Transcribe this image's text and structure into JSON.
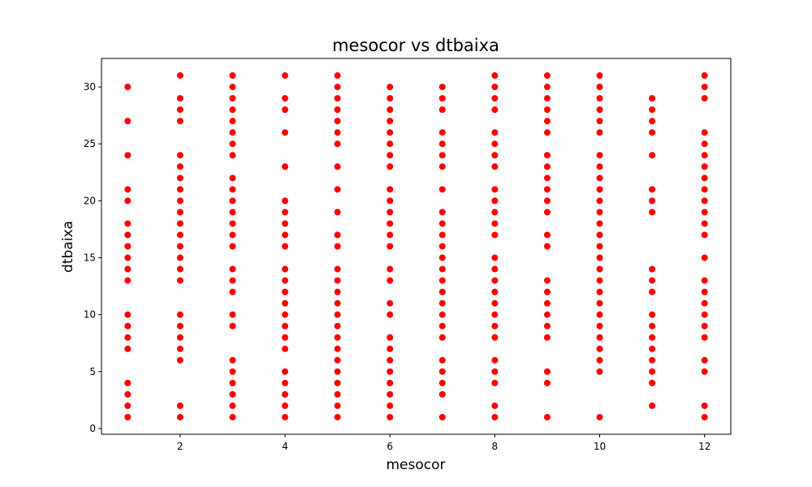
{
  "chart_data": {
    "type": "scatter",
    "title": "mesocor vs dtbaixa",
    "xlabel": "mesocor",
    "ylabel": "dtbaixa",
    "xlim": [
      0.5,
      12.5
    ],
    "ylim": [
      -0.5,
      32.5
    ],
    "xticks": [
      2,
      4,
      6,
      8,
      10,
      12
    ],
    "yticks": [
      0,
      5,
      10,
      15,
      20,
      25,
      30
    ],
    "grid": false,
    "marker_color": "#ff0000",
    "series": [
      {
        "points_by_x": [
          {
            "x": 1,
            "y": [
              1,
              2,
              3,
              4,
              7,
              8,
              9,
              10,
              13,
              14,
              15,
              16,
              17,
              18,
              20,
              21,
              24,
              27,
              30
            ]
          },
          {
            "x": 2,
            "y": [
              1,
              2,
              6,
              7,
              8,
              9,
              10,
              13,
              14,
              15,
              16,
              17,
              18,
              19,
              20,
              21,
              22,
              23,
              24,
              27,
              28,
              29,
              31
            ]
          },
          {
            "x": 3,
            "y": [
              1,
              2,
              3,
              4,
              5,
              6,
              9,
              10,
              12,
              13,
              14,
              16,
              17,
              18,
              19,
              20,
              21,
              22,
              24,
              25,
              26,
              27,
              28,
              29,
              30,
              31
            ]
          },
          {
            "x": 4,
            "y": [
              1,
              2,
              3,
              4,
              5,
              7,
              8,
              9,
              10,
              11,
              12,
              13,
              14,
              16,
              17,
              18,
              19,
              20,
              23,
              26,
              28,
              29,
              31
            ]
          },
          {
            "x": 5,
            "y": [
              1,
              2,
              3,
              4,
              5,
              6,
              7,
              8,
              9,
              10,
              11,
              12,
              13,
              14,
              16,
              17,
              19,
              21,
              23,
              25,
              26,
              27,
              28,
              29,
              30,
              31
            ]
          },
          {
            "x": 6,
            "y": [
              1,
              2,
              3,
              4,
              5,
              6,
              7,
              8,
              10,
              11,
              13,
              14,
              16,
              17,
              18,
              19,
              20,
              21,
              23,
              24,
              25,
              26,
              27,
              28,
              29,
              30
            ]
          },
          {
            "x": 7,
            "y": [
              1,
              3,
              4,
              5,
              6,
              8,
              9,
              10,
              11,
              12,
              13,
              14,
              15,
              16,
              17,
              18,
              19,
              21,
              23,
              24,
              25,
              26,
              28,
              29,
              30
            ]
          },
          {
            "x": 8,
            "y": [
              1,
              2,
              4,
              5,
              6,
              8,
              9,
              10,
              11,
              12,
              13,
              14,
              15,
              17,
              18,
              19,
              20,
              21,
              23,
              24,
              25,
              26,
              28,
              29,
              30,
              31
            ]
          },
          {
            "x": 9,
            "y": [
              1,
              4,
              5,
              8,
              9,
              10,
              11,
              12,
              13,
              16,
              17,
              19,
              20,
              21,
              22,
              23,
              24,
              26,
              27,
              28,
              29,
              30,
              31
            ]
          },
          {
            "x": 10,
            "y": [
              1,
              5,
              6,
              7,
              8,
              9,
              10,
              11,
              12,
              13,
              14,
              15,
              16,
              17,
              18,
              19,
              20,
              21,
              22,
              23,
              24,
              26,
              27,
              28,
              29,
              30,
              31
            ]
          },
          {
            "x": 11,
            "y": [
              2,
              4,
              5,
              6,
              7,
              8,
              9,
              10,
              12,
              13,
              14,
              19,
              20,
              21,
              24,
              26,
              27,
              28,
              29
            ]
          },
          {
            "x": 12,
            "y": [
              1,
              2,
              5,
              6,
              8,
              9,
              10,
              11,
              12,
              13,
              15,
              17,
              18,
              19,
              20,
              21,
              22,
              23,
              24,
              25,
              26,
              29,
              30,
              31
            ]
          }
        ]
      }
    ]
  }
}
